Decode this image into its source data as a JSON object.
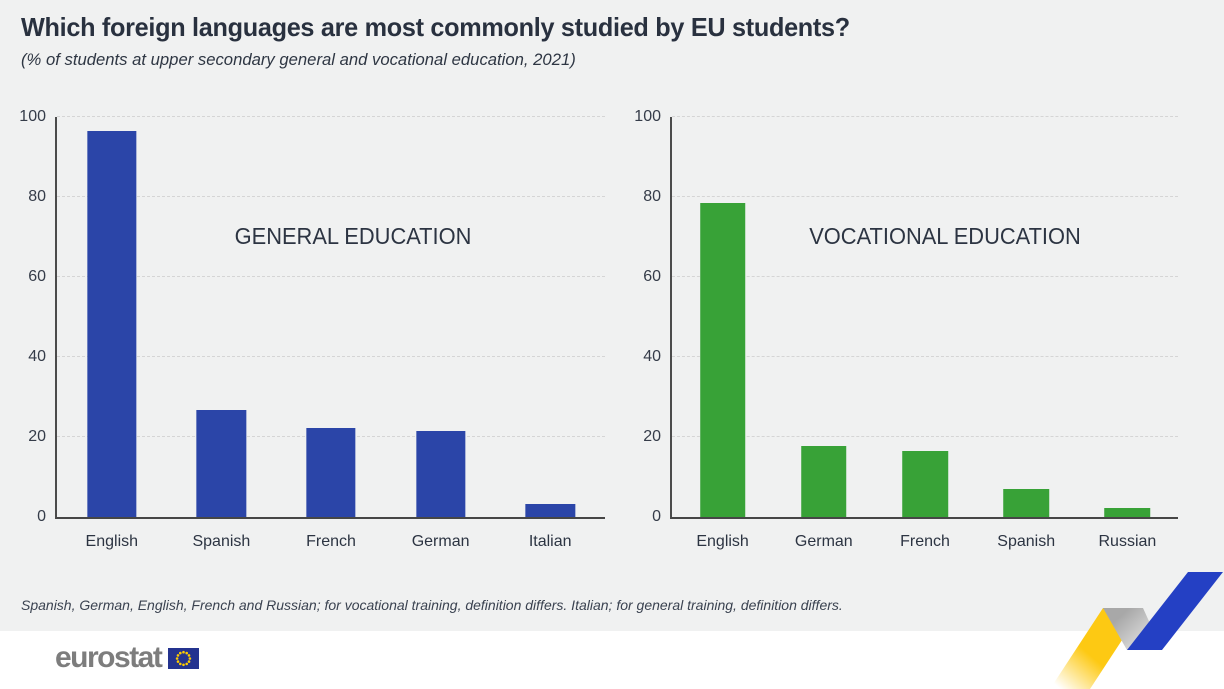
{
  "header": {
    "title": "Which foreign languages are most commonly studied by EU students?",
    "subtitle": "(% of students at upper secondary general and vocational education, 2021)"
  },
  "chart_data": [
    {
      "type": "bar",
      "title": "GENERAL EDUCATION",
      "categories": [
        "English",
        "Spanish",
        "French",
        "German",
        "Italian"
      ],
      "values": [
        96.5,
        26.8,
        22.2,
        21.6,
        3.3
      ],
      "ylabel": "",
      "ylim": [
        0,
        100
      ],
      "yticks": [
        0,
        20,
        40,
        60,
        80,
        100
      ],
      "grid": "horizontal-dashed",
      "legend": "none",
      "bar_color": "#2b45a8"
    },
    {
      "type": "bar",
      "title": "VOCATIONAL EDUCATION",
      "categories": [
        "English",
        "German",
        "French",
        "Spanish",
        "Russian"
      ],
      "values": [
        78.5,
        17.8,
        16.5,
        7.0,
        2.3
      ],
      "ylabel": "",
      "ylim": [
        0,
        100
      ],
      "yticks": [
        0,
        20,
        40,
        60,
        80,
        100
      ],
      "grid": "horizontal-dashed",
      "legend": "none",
      "bar_color": "#38a237"
    }
  ],
  "footnote": "Spanish, German, English, French and Russian; for vocational training, definition differs. Italian; for general training, definition differs.",
  "branding": {
    "logo_text": "eurostat",
    "flag_icon": "eu-flag-icon",
    "ribbon_icon": "trend-ribbon-icon"
  },
  "colors": {
    "background": "#f0f1f1",
    "footer_background": "#ffffff",
    "title_text": "#29313f",
    "axis": "#4b4b4b",
    "gridline": "#d5d5d5",
    "general_bar": "#2b45a8",
    "vocational_bar": "#38a237",
    "logo_gray": "#7d7d7d",
    "flag_blue": "#24338f",
    "star_yellow": "#ffcc00",
    "ribbon_yellow": "#fdc913",
    "ribbon_blue": "#2440c4"
  }
}
